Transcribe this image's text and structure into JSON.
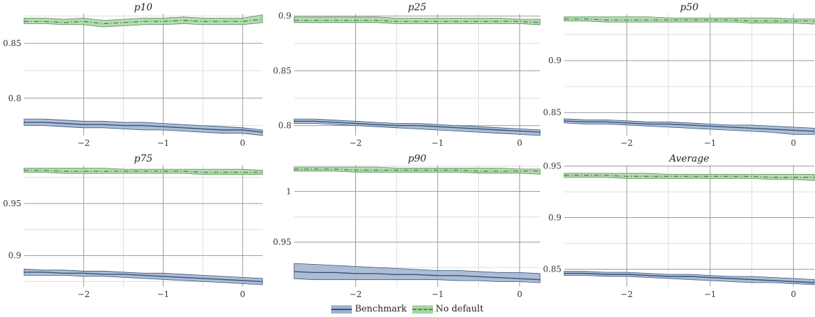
{
  "chart_data": [
    {
      "type": "area",
      "title": "p10",
      "xlim": [
        -2.75,
        0.25
      ],
      "ylim": [
        0.766,
        0.877
      ],
      "xticks": [
        -2,
        -1,
        0
      ],
      "xtick_labels": [
        "−2",
        "−1",
        "0"
      ],
      "yticks": [
        0.8,
        0.85
      ],
      "ytick_labels": [
        "0.8",
        "0.85"
      ],
      "series": [
        {
          "name": "Benchmark",
          "x": [
            -2.75,
            -2.5,
            -2.25,
            -2.0,
            -1.75,
            -1.5,
            -1.25,
            -1.0,
            -0.75,
            -0.5,
            -0.25,
            0.0,
            0.25
          ],
          "mid": [
            0.778,
            0.778,
            0.777,
            0.776,
            0.776,
            0.775,
            0.775,
            0.774,
            0.773,
            0.772,
            0.771,
            0.771,
            0.769
          ],
          "lower": [
            0.775,
            0.775,
            0.774,
            0.773,
            0.773,
            0.772,
            0.771,
            0.771,
            0.77,
            0.769,
            0.768,
            0.768,
            0.766
          ],
          "upper": [
            0.781,
            0.781,
            0.78,
            0.779,
            0.779,
            0.778,
            0.778,
            0.777,
            0.776,
            0.775,
            0.774,
            0.773,
            0.771
          ]
        },
        {
          "name": "No default",
          "x": [
            -2.75,
            -2.5,
            -2.25,
            -2.0,
            -1.75,
            -1.5,
            -1.25,
            -1.0,
            -0.75,
            -0.5,
            -0.25,
            0.0,
            0.25
          ],
          "mid": [
            0.87,
            0.87,
            0.869,
            0.87,
            0.868,
            0.869,
            0.87,
            0.87,
            0.871,
            0.87,
            0.87,
            0.87,
            0.872
          ],
          "lower": [
            0.868,
            0.868,
            0.867,
            0.867,
            0.865,
            0.866,
            0.867,
            0.867,
            0.868,
            0.867,
            0.867,
            0.867,
            0.869
          ],
          "upper": [
            0.873,
            0.873,
            0.872,
            0.873,
            0.871,
            0.872,
            0.873,
            0.873,
            0.874,
            0.873,
            0.873,
            0.873,
            0.876
          ]
        }
      ]
    },
    {
      "type": "area",
      "title": "p25",
      "xlim": [
        -2.75,
        0.25
      ],
      "ylim": [
        0.791,
        0.902
      ],
      "xticks": [
        -2,
        -1,
        0
      ],
      "xtick_labels": [
        "−2",
        "−1",
        "0"
      ],
      "yticks": [
        0.8,
        0.85,
        0.9
      ],
      "ytick_labels": [
        "0.8",
        "0.85",
        "0.9"
      ],
      "series": [
        {
          "name": "Benchmark",
          "x": [
            -2.75,
            -2.5,
            -2.25,
            -2.0,
            -1.75,
            -1.5,
            -1.25,
            -1.0,
            -0.75,
            -0.5,
            -0.25,
            0.0,
            0.25
          ],
          "mid": [
            0.804,
            0.804,
            0.803,
            0.802,
            0.801,
            0.8,
            0.8,
            0.799,
            0.798,
            0.797,
            0.796,
            0.795,
            0.794
          ],
          "lower": [
            0.802,
            0.802,
            0.801,
            0.8,
            0.799,
            0.798,
            0.797,
            0.796,
            0.795,
            0.794,
            0.793,
            0.792,
            0.791
          ],
          "upper": [
            0.806,
            0.806,
            0.805,
            0.804,
            0.803,
            0.802,
            0.802,
            0.801,
            0.8,
            0.799,
            0.798,
            0.797,
            0.796
          ]
        },
        {
          "name": "No default",
          "x": [
            -2.75,
            -2.5,
            -2.25,
            -2.0,
            -1.75,
            -1.5,
            -1.25,
            -1.0,
            -0.75,
            -0.5,
            -0.25,
            0.0,
            0.25
          ],
          "mid": [
            0.896,
            0.896,
            0.896,
            0.896,
            0.896,
            0.895,
            0.895,
            0.895,
            0.895,
            0.895,
            0.895,
            0.895,
            0.894
          ],
          "lower": [
            0.894,
            0.894,
            0.894,
            0.894,
            0.894,
            0.893,
            0.893,
            0.893,
            0.893,
            0.893,
            0.893,
            0.893,
            0.892
          ],
          "upper": [
            0.899,
            0.899,
            0.899,
            0.899,
            0.899,
            0.898,
            0.898,
            0.898,
            0.898,
            0.898,
            0.898,
            0.897,
            0.897
          ]
        }
      ]
    },
    {
      "type": "area",
      "title": "p50",
      "xlim": [
        -2.75,
        0.25
      ],
      "ylim": [
        0.828,
        0.945
      ],
      "xticks": [
        -2,
        -1,
        0
      ],
      "xtick_labels": [
        "−2",
        "−1",
        "0"
      ],
      "yticks": [
        0.85,
        0.9
      ],
      "ytick_labels": [
        "0.85",
        "0.9"
      ],
      "series": [
        {
          "name": "Benchmark",
          "x": [
            -2.75,
            -2.5,
            -2.25,
            -2.0,
            -1.75,
            -1.5,
            -1.25,
            -1.0,
            -0.75,
            -0.5,
            -0.25,
            0.0,
            0.25
          ],
          "mid": [
            0.842,
            0.841,
            0.841,
            0.84,
            0.839,
            0.839,
            0.838,
            0.837,
            0.836,
            0.835,
            0.834,
            0.833,
            0.832
          ],
          "lower": [
            0.84,
            0.839,
            0.839,
            0.838,
            0.837,
            0.836,
            0.835,
            0.834,
            0.833,
            0.832,
            0.831,
            0.829,
            0.829
          ],
          "upper": [
            0.844,
            0.843,
            0.843,
            0.842,
            0.841,
            0.841,
            0.84,
            0.839,
            0.838,
            0.838,
            0.837,
            0.836,
            0.835
          ]
        },
        {
          "name": "No default",
          "x": [
            -2.75,
            -2.5,
            -2.25,
            -2.0,
            -1.75,
            -1.5,
            -1.25,
            -1.0,
            -0.75,
            -0.5,
            -0.25,
            0.0,
            0.25
          ],
          "mid": [
            0.94,
            0.94,
            0.939,
            0.939,
            0.939,
            0.939,
            0.939,
            0.939,
            0.939,
            0.938,
            0.938,
            0.938,
            0.938
          ],
          "lower": [
            0.938,
            0.938,
            0.937,
            0.937,
            0.937,
            0.937,
            0.937,
            0.937,
            0.937,
            0.936,
            0.936,
            0.936,
            0.935
          ],
          "upper": [
            0.942,
            0.942,
            0.942,
            0.942,
            0.942,
            0.941,
            0.941,
            0.941,
            0.941,
            0.941,
            0.941,
            0.94,
            0.94
          ]
        }
      ]
    },
    {
      "type": "area",
      "title": "p75",
      "xlim": [
        -2.75,
        0.25
      ],
      "ylim": [
        0.87,
        0.987
      ],
      "xticks": [
        -2,
        -1,
        0
      ],
      "xtick_labels": [
        "−2",
        "−1",
        "0"
      ],
      "yticks": [
        0.9,
        0.95
      ],
      "ytick_labels": [
        "0.9",
        "0.95"
      ],
      "series": [
        {
          "name": "Benchmark",
          "x": [
            -2.75,
            -2.5,
            -2.25,
            -2.0,
            -1.75,
            -1.5,
            -1.25,
            -1.0,
            -0.75,
            -0.5,
            -0.25,
            0.0,
            0.25
          ],
          "mid": [
            0.884,
            0.884,
            0.883,
            0.883,
            0.882,
            0.882,
            0.881,
            0.88,
            0.879,
            0.878,
            0.877,
            0.876,
            0.875
          ],
          "lower": [
            0.881,
            0.881,
            0.881,
            0.88,
            0.88,
            0.879,
            0.878,
            0.877,
            0.876,
            0.875,
            0.874,
            0.873,
            0.872
          ],
          "upper": [
            0.887,
            0.886,
            0.886,
            0.885,
            0.885,
            0.884,
            0.883,
            0.883,
            0.882,
            0.881,
            0.88,
            0.879,
            0.878
          ]
        },
        {
          "name": "No default",
          "x": [
            -2.75,
            -2.5,
            -2.25,
            -2.0,
            -1.75,
            -1.5,
            -1.25,
            -1.0,
            -0.75,
            -0.5,
            -0.25,
            0.0,
            0.25
          ],
          "mid": [
            0.982,
            0.982,
            0.981,
            0.981,
            0.981,
            0.981,
            0.981,
            0.981,
            0.981,
            0.98,
            0.98,
            0.98,
            0.98
          ],
          "lower": [
            0.98,
            0.98,
            0.979,
            0.979,
            0.979,
            0.979,
            0.979,
            0.979,
            0.979,
            0.978,
            0.978,
            0.978,
            0.978
          ],
          "upper": [
            0.984,
            0.984,
            0.984,
            0.984,
            0.984,
            0.983,
            0.983,
            0.983,
            0.983,
            0.983,
            0.983,
            0.983,
            0.982
          ]
        }
      ]
    },
    {
      "type": "area",
      "title": "p90",
      "xlim": [
        -2.75,
        0.25
      ],
      "ylim": [
        0.906,
        1.026
      ],
      "xticks": [
        -2,
        -1,
        0
      ],
      "xtick_labels": [
        "−2",
        "−1",
        "0"
      ],
      "yticks": [
        0.95,
        1.0
      ],
      "ytick_labels": [
        "0.95",
        "1"
      ],
      "series": [
        {
          "name": "Benchmark",
          "x": [
            -2.75,
            -2.5,
            -2.25,
            -2.0,
            -1.75,
            -1.5,
            -1.25,
            -1.0,
            -0.75,
            -0.5,
            -0.25,
            0.0,
            0.25
          ],
          "mid": [
            0.921,
            0.92,
            0.92,
            0.919,
            0.919,
            0.918,
            0.918,
            0.917,
            0.917,
            0.916,
            0.915,
            0.914,
            0.913
          ],
          "lower": [
            0.914,
            0.913,
            0.913,
            0.913,
            0.913,
            0.913,
            0.913,
            0.913,
            0.912,
            0.912,
            0.911,
            0.911,
            0.91
          ],
          "upper": [
            0.929,
            0.928,
            0.927,
            0.926,
            0.925,
            0.924,
            0.923,
            0.922,
            0.922,
            0.921,
            0.92,
            0.92,
            0.919
          ]
        },
        {
          "name": "No default",
          "x": [
            -2.75,
            -2.5,
            -2.25,
            -2.0,
            -1.75,
            -1.5,
            -1.25,
            -1.0,
            -0.75,
            -0.5,
            -0.25,
            0.0,
            0.25
          ],
          "mid": [
            1.022,
            1.022,
            1.022,
            1.021,
            1.021,
            1.021,
            1.021,
            1.021,
            1.021,
            1.02,
            1.02,
            1.02,
            1.02
          ],
          "lower": [
            1.02,
            1.02,
            1.02,
            1.019,
            1.019,
            1.019,
            1.019,
            1.019,
            1.019,
            1.018,
            1.018,
            1.018,
            1.017
          ],
          "upper": [
            1.024,
            1.024,
            1.024,
            1.024,
            1.024,
            1.023,
            1.023,
            1.023,
            1.023,
            1.023,
            1.023,
            1.022,
            1.022
          ]
        }
      ]
    },
    {
      "type": "area",
      "title": "Average",
      "xlim": [
        -2.75,
        0.25
      ],
      "ylim": [
        0.833,
        0.951
      ],
      "xticks": [
        -2,
        -1,
        0
      ],
      "xtick_labels": [
        "−2",
        "−1",
        "0"
      ],
      "yticks": [
        0.85,
        0.9,
        0.95
      ],
      "ytick_labels": [
        "0.85",
        "0.9",
        "0.95"
      ],
      "series": [
        {
          "name": "Benchmark",
          "x": [
            -2.75,
            -2.5,
            -2.25,
            -2.0,
            -1.75,
            -1.5,
            -1.25,
            -1.0,
            -0.75,
            -0.5,
            -0.25,
            0.0,
            0.25
          ],
          "mid": [
            0.846,
            0.846,
            0.845,
            0.845,
            0.844,
            0.843,
            0.843,
            0.842,
            0.841,
            0.84,
            0.839,
            0.838,
            0.837
          ],
          "lower": [
            0.844,
            0.844,
            0.843,
            0.843,
            0.842,
            0.841,
            0.84,
            0.839,
            0.838,
            0.837,
            0.837,
            0.836,
            0.835
          ],
          "upper": [
            0.848,
            0.848,
            0.847,
            0.847,
            0.846,
            0.845,
            0.845,
            0.844,
            0.843,
            0.843,
            0.842,
            0.841,
            0.84
          ]
        },
        {
          "name": "No default",
          "x": [
            -2.75,
            -2.5,
            -2.25,
            -2.0,
            -1.75,
            -1.5,
            -1.25,
            -1.0,
            -0.75,
            -0.5,
            -0.25,
            0.0,
            0.25
          ],
          "mid": [
            0.941,
            0.941,
            0.941,
            0.94,
            0.94,
            0.94,
            0.94,
            0.94,
            0.94,
            0.94,
            0.939,
            0.939,
            0.939
          ],
          "lower": [
            0.939,
            0.939,
            0.939,
            0.938,
            0.938,
            0.938,
            0.938,
            0.938,
            0.938,
            0.938,
            0.937,
            0.937,
            0.936
          ],
          "upper": [
            0.943,
            0.943,
            0.943,
            0.943,
            0.943,
            0.942,
            0.942,
            0.942,
            0.942,
            0.942,
            0.942,
            0.942,
            0.942
          ]
        }
      ]
    }
  ],
  "legend": {
    "placement": "bottom-center",
    "items": [
      {
        "label": "Benchmark",
        "fill": "#9fb1cc",
        "line": "#34517c",
        "dash": "solid"
      },
      {
        "label": "No default",
        "fill": "#a8d5a2",
        "line": "#4f8a4f",
        "dash": "dash-dot"
      }
    ]
  },
  "colors": {
    "benchmark_fill": "#9fb1cc",
    "benchmark_line": "#34517c",
    "nodefault_fill": "#a8d5a2",
    "nodefault_line": "#4f8a4f",
    "grid_major": "#999999",
    "grid_minor": "#dddddd"
  }
}
